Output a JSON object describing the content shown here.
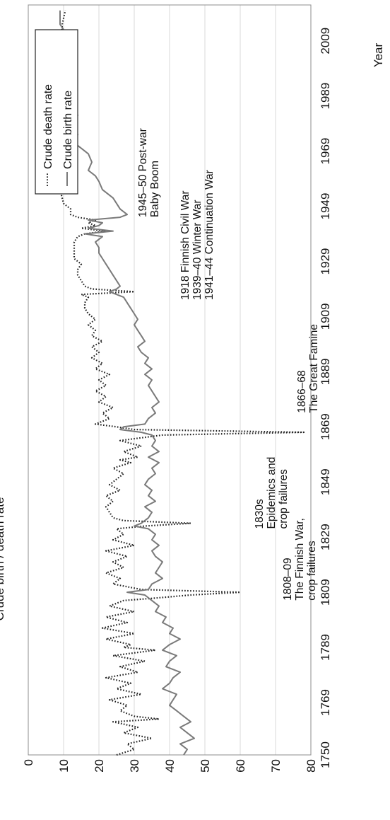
{
  "chart_data": {
    "type": "line",
    "title": "",
    "xlabel": "Year",
    "ylabel": "Crude birth / death rate",
    "xlim": [
      1750,
      2022
    ],
    "ylim": [
      0,
      80
    ],
    "grid": true,
    "legend_position": "top-right",
    "x_ticks": [
      "1750",
      "1769",
      "1789",
      "1809",
      "1829",
      "1849",
      "1869",
      "1889",
      "1909",
      "1929",
      "1949",
      "1969",
      "1989",
      "2009"
    ],
    "y_ticks": [
      "0",
      "10",
      "20",
      "30",
      "40",
      "50",
      "60",
      "70",
      "80"
    ],
    "colors": {
      "birth": "#7a7a7a",
      "death": "#222222",
      "grid": "#d9d9d9"
    },
    "series": [
      {
        "name": "Crude death rate",
        "style": "dotted",
        "x": [
          1750,
          1752,
          1754,
          1756,
          1758,
          1760,
          1762,
          1763,
          1764,
          1766,
          1768,
          1770,
          1772,
          1774,
          1776,
          1778,
          1780,
          1782,
          1784,
          1786,
          1788,
          1789,
          1790,
          1792,
          1794,
          1796,
          1798,
          1800,
          1802,
          1804,
          1806,
          1807,
          1808,
          1809,
          1810,
          1812,
          1814,
          1816,
          1818,
          1820,
          1822,
          1824,
          1826,
          1828,
          1830,
          1832,
          1833,
          1834,
          1835,
          1836,
          1838,
          1840,
          1842,
          1844,
          1846,
          1848,
          1850,
          1852,
          1854,
          1856,
          1857,
          1858,
          1860,
          1862,
          1864,
          1866,
          1867,
          1868,
          1869,
          1870,
          1872,
          1874,
          1876,
          1878,
          1880,
          1882,
          1884,
          1886,
          1888,
          1890,
          1892,
          1894,
          1896,
          1898,
          1900,
          1902,
          1904,
          1906,
          1908,
          1910,
          1912,
          1914,
          1916,
          1917,
          1918,
          1919,
          1920,
          1922,
          1924,
          1926,
          1928,
          1930,
          1932,
          1934,
          1936,
          1938,
          1939,
          1940,
          1941,
          1942,
          1943,
          1944,
          1945,
          1946,
          1948,
          1950,
          1955,
          1960,
          1965,
          1970,
          1975,
          1980,
          1985,
          1990,
          1995,
          2000,
          2005,
          2010,
          2015,
          2020
        ],
        "y": [
          25,
          30,
          28,
          35,
          27,
          31,
          24,
          37,
          30,
          26,
          28,
          23,
          32,
          25,
          29,
          22,
          31,
          26,
          33,
          24,
          36,
          27,
          29,
          22,
          30,
          21,
          28,
          22,
          30,
          23,
          27,
          37,
          46,
          60,
          32,
          24,
          26,
          22,
          27,
          24,
          28,
          22,
          30,
          24,
          27,
          25,
          33,
          46,
          27,
          24,
          23,
          22,
          24,
          22,
          26,
          23,
          25,
          27,
          24,
          29,
          26,
          31,
          27,
          32,
          26,
          38,
          78,
          30,
          25,
          19,
          23,
          21,
          24,
          20,
          22,
          19,
          22,
          20,
          23,
          19,
          21,
          18,
          20,
          18,
          21,
          18,
          19,
          17,
          19,
          17,
          16,
          16,
          17,
          15,
          30,
          18,
          16,
          15,
          14,
          14,
          15,
          13,
          13,
          13,
          13,
          14,
          16,
          22,
          15,
          19,
          17,
          19,
          14,
          12,
          12,
          10,
          9,
          9.5,
          9.5,
          10,
          9.5,
          9.3,
          9.8,
          10,
          9.7,
          9.6,
          9.2,
          9.5,
          9.6,
          10.5
        ]
      },
      {
        "name": "Crude birth rate",
        "style": "solid",
        "x": [
          1750,
          1752,
          1754,
          1756,
          1758,
          1760,
          1762,
          1764,
          1766,
          1768,
          1770,
          1772,
          1774,
          1776,
          1778,
          1780,
          1782,
          1784,
          1786,
          1788,
          1790,
          1792,
          1794,
          1796,
          1798,
          1800,
          1802,
          1804,
          1806,
          1808,
          1809,
          1810,
          1812,
          1814,
          1816,
          1818,
          1820,
          1822,
          1824,
          1826,
          1828,
          1830,
          1832,
          1833,
          1834,
          1836,
          1838,
          1840,
          1842,
          1844,
          1846,
          1848,
          1850,
          1852,
          1854,
          1856,
          1858,
          1860,
          1862,
          1864,
          1866,
          1867,
          1868,
          1869,
          1870,
          1872,
          1874,
          1876,
          1878,
          1880,
          1882,
          1884,
          1886,
          1888,
          1890,
          1892,
          1894,
          1896,
          1898,
          1900,
          1902,
          1904,
          1906,
          1908,
          1910,
          1912,
          1914,
          1916,
          1917,
          1918,
          1919,
          1920,
          1922,
          1924,
          1926,
          1928,
          1930,
          1932,
          1934,
          1936,
          1938,
          1939,
          1940,
          1941,
          1942,
          1943,
          1944,
          1945,
          1946,
          1947,
          1948,
          1950,
          1952,
          1955,
          1958,
          1960,
          1962,
          1965,
          1968,
          1970,
          1972,
          1975,
          1978,
          1980,
          1982,
          1985,
          1988,
          1990,
          1992,
          1995,
          1998,
          2000,
          2003,
          2005,
          2008,
          2010,
          2013,
          2015,
          2017,
          2020
        ],
        "y": [
          44,
          45,
          43,
          47,
          45,
          43,
          46,
          44,
          42,
          40,
          41,
          42,
          38,
          40,
          41,
          43,
          39,
          40,
          42,
          38,
          40,
          43,
          40,
          41,
          38,
          39,
          36,
          37,
          35,
          33,
          28,
          34,
          35,
          38,
          36,
          37,
          38,
          36,
          35,
          37,
          35,
          36,
          34,
          30,
          32,
          34,
          35,
          33,
          36,
          34,
          35,
          33,
          34,
          36,
          35,
          37,
          34,
          37,
          35,
          36,
          35,
          32,
          26,
          27,
          33,
          34,
          36,
          35,
          37,
          36,
          35,
          34,
          35,
          33,
          35,
          33,
          34,
          32,
          31,
          33,
          32,
          31,
          30,
          31,
          30,
          29,
          28,
          27,
          25,
          23,
          25,
          26,
          25,
          24,
          23,
          22,
          21,
          20,
          20,
          19,
          21,
          16,
          24,
          17,
          20,
          21,
          17,
          26,
          28,
          27,
          26,
          25,
          24,
          21,
          20,
          19,
          17,
          18,
          17,
          15,
          13,
          14,
          13,
          13,
          14,
          13,
          12,
          13,
          13,
          13,
          11.5,
          11,
          11,
          11,
          11,
          11,
          10,
          9,
          9,
          9
        ]
      }
    ],
    "annotations": [
      {
        "lines": [
          "1808–09",
          "The Finnish War,",
          "crop failures"
        ]
      },
      {
        "lines": [
          "1830s",
          "Epidemics and",
          "crop failures"
        ]
      },
      {
        "lines": [
          "1866–68",
          "The Great Famine"
        ]
      },
      {
        "lines": [
          "1918 Finnish Civil War",
          "1939–40 Winter War",
          "1941–44 Continuation War"
        ]
      },
      {
        "lines": [
          "1945–50 Post-war",
          "Baby Boom"
        ]
      }
    ],
    "legend": [
      "Crude death rate",
      "Crude birth rate"
    ]
  }
}
